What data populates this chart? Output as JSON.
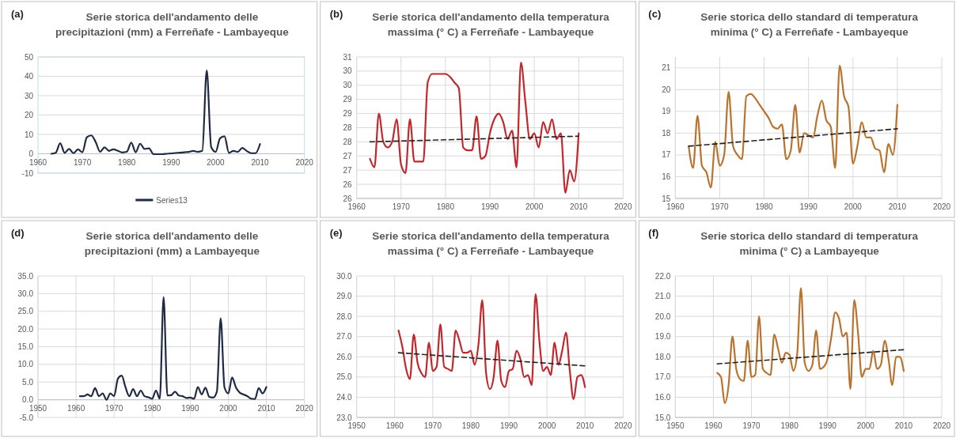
{
  "chart_data": [
    {
      "type": "line",
      "title": "Serie storica dell'andamento delle precipitazioni (mm) a Ferreñafe - Lambayeque",
      "annotations": [
        "(a)"
      ],
      "x": [
        1963,
        1964,
        1965,
        1966,
        1967,
        1968,
        1969,
        1970,
        1971,
        1972,
        1973,
        1974,
        1975,
        1976,
        1977,
        1978,
        1979,
        1980,
        1981,
        1982,
        1983,
        1984,
        1985,
        1986,
        1987,
        1988,
        1989,
        1990,
        1991,
        1992,
        1993,
        1994,
        1995,
        1996,
        1997,
        1998,
        1999,
        2000,
        2001,
        2002,
        2003,
        2004,
        2005,
        2006,
        2007,
        2008,
        2009,
        2010
      ],
      "series": [
        {
          "name": "Series13",
          "color": "#1f2a44",
          "values": [
            0,
            0.5,
            5.5,
            0.5,
            2.5,
            0.3,
            2.3,
            0.8,
            8.5,
            9.5,
            6,
            1,
            3.3,
            1.5,
            2.3,
            1.5,
            0.7,
            1,
            5.8,
            0.8,
            5.2,
            2.5,
            2.8,
            -0.2,
            -0.2,
            -0.2,
            0,
            0.2,
            0.4,
            0.6,
            0.8,
            1,
            1.5,
            1,
            1.5,
            43,
            3.5,
            1,
            8,
            9,
            0.5,
            1.5,
            1,
            3,
            1.5,
            0.3,
            0.3,
            5
          ]
        }
      ],
      "xlim": [
        1960,
        2020
      ],
      "xticks": [
        1960,
        1970,
        1980,
        1990,
        2000,
        2010,
        2020
      ],
      "ylim": [
        -10,
        50
      ],
      "yticks": [
        -10,
        0,
        10,
        20,
        30,
        40,
        50
      ],
      "grid": "y",
      "legend": "bottom"
    },
    {
      "type": "line",
      "title": "Serie storica dell'andamento della temperatura massima (° C) a Ferreñafe - Lambayeque",
      "annotations": [
        "(b)"
      ],
      "x": [
        1963,
        1964,
        1965,
        1966,
        1967,
        1968,
        1969,
        1970,
        1971,
        1972,
        1973,
        1974,
        1975,
        1976,
        1977,
        1978,
        1979,
        1980,
        1981,
        1982,
        1983,
        1984,
        1985,
        1986,
        1987,
        1988,
        1989,
        1990,
        1991,
        1992,
        1993,
        1994,
        1995,
        1996,
        1997,
        1998,
        1999,
        2000,
        2001,
        2002,
        2003,
        2004,
        2005,
        2006,
        2007,
        2008,
        2009,
        2010
      ],
      "series": [
        {
          "color": "#c0282d",
          "values": [
            26.9,
            26.6,
            28.5,
            27.5,
            27.3,
            27.5,
            28.3,
            26.7,
            26.4,
            28.3,
            26.8,
            26.8,
            26.8,
            29.6,
            29.9,
            29.9,
            29.9,
            29.9,
            29.8,
            29.6,
            29.4,
            27.3,
            27.2,
            27.2,
            28.4,
            26.9,
            27,
            27.8,
            28.3,
            28.5,
            28.2,
            27.6,
            27.9,
            26.6,
            30.3,
            28.9,
            27.6,
            27.8,
            27.3,
            28.2,
            27.8,
            28.3,
            27.6,
            27.8,
            25.7,
            26.5,
            26.1,
            27.8
          ]
        },
        {
          "type": "line",
          "line_style": "dashed",
          "color": "#222222",
          "x": [
            1963,
            2010
          ],
          "values": [
            27.5,
            27.7
          ]
        }
      ],
      "xlim": [
        1960,
        2020
      ],
      "xticks": [
        1960,
        1970,
        1980,
        1990,
        2000,
        2010,
        2020
      ],
      "ylim": [
        25.5,
        30.5
      ],
      "yticks": [
        {
          "value": 25.5,
          "label": "26"
        },
        {
          "value": 26,
          "label": "26"
        },
        {
          "value": 26.5,
          "label": "27"
        },
        {
          "value": 27,
          "label": "27"
        },
        {
          "value": 27.5,
          "label": "28"
        },
        {
          "value": 28,
          "label": "28"
        },
        {
          "value": 28.5,
          "label": "29"
        },
        {
          "value": 29,
          "label": "29"
        },
        {
          "value": 29.5,
          "label": "30"
        },
        {
          "value": 30,
          "label": "30"
        },
        {
          "value": 30.5,
          "label": "31"
        }
      ],
      "grid": true
    },
    {
      "type": "line",
      "title": "Serie storica dello standard di temperatura minima (° C) a Ferreñafe - Lambayeque",
      "annotations": [
        "(c)"
      ],
      "x": [
        1963,
        1964,
        1965,
        1966,
        1967,
        1968,
        1969,
        1970,
        1971,
        1972,
        1973,
        1974,
        1975,
        1976,
        1977,
        1978,
        1979,
        1980,
        1981,
        1982,
        1983,
        1984,
        1985,
        1986,
        1987,
        1988,
        1989,
        1990,
        1991,
        1992,
        1993,
        1994,
        1995,
        1996,
        1997,
        1998,
        1999,
        2000,
        2001,
        2002,
        2003,
        2004,
        2005,
        2006,
        2007,
        2008,
        2009,
        2010
      ],
      "series": [
        {
          "color": "#b8732e",
          "values": [
            17.4,
            16.4,
            18.8,
            16.5,
            16.2,
            15.5,
            17.6,
            16.5,
            17,
            19.9,
            17.4,
            17,
            16.8,
            19.7,
            19.8,
            19.6,
            19.3,
            19,
            18.7,
            18.3,
            18.2,
            18.4,
            16.8,
            17.2,
            19.3,
            17.1,
            18,
            17.9,
            17.8,
            18.8,
            19.5,
            18.6,
            18.3,
            16.4,
            21.1,
            19.7,
            19.2,
            16.6,
            17.4,
            18.5,
            17.8,
            17.8,
            17.3,
            17.2,
            16.2,
            17.5,
            17,
            19.3
          ]
        },
        {
          "type": "line",
          "line_style": "dashed",
          "color": "#222222",
          "x": [
            1963,
            2010
          ],
          "values": [
            17.4,
            18.2
          ]
        }
      ],
      "xlim": [
        1960,
        2020
      ],
      "xticks": [
        1960,
        1970,
        1980,
        1990,
        2000,
        2010,
        2020
      ],
      "ylim": [
        15,
        21.5
      ],
      "yticks": [
        15,
        16,
        17,
        18,
        19,
        20,
        21
      ],
      "grid": true
    },
    {
      "type": "line",
      "title": "Serie storica dell'andamento delle precipitazioni (mm) a Lambayeque",
      "annotations": [
        "(d)"
      ],
      "x": [
        1961,
        1962,
        1963,
        1964,
        1965,
        1966,
        1967,
        1968,
        1969,
        1970,
        1971,
        1972,
        1973,
        1974,
        1975,
        1976,
        1977,
        1978,
        1979,
        1980,
        1981,
        1982,
        1983,
        1984,
        1985,
        1986,
        1987,
        1988,
        1989,
        1990,
        1991,
        1992,
        1993,
        1994,
        1995,
        1996,
        1997,
        1998,
        1999,
        2000,
        2001,
        2002,
        2003,
        2004,
        2005,
        2006,
        2007,
        2008,
        2009,
        2010
      ],
      "series": [
        {
          "color": "#1f2a44",
          "values": [
            1,
            1,
            1.5,
            1,
            3.3,
            1,
            1.8,
            0,
            1.8,
            1,
            6,
            6.8,
            3.5,
            1,
            3,
            1,
            2.6,
            1,
            0.7,
            0.3,
            2.6,
            0.3,
            29,
            1.2,
            1.3,
            2.3,
            1.2,
            1,
            0.5,
            0.6,
            0.3,
            3.6,
            1.5,
            3.4,
            0.8,
            0.6,
            2.3,
            23,
            3.5,
            1.8,
            6.3,
            3.5,
            2,
            1.5,
            1,
            0.3,
            0.2,
            3.3,
            1.8,
            3.6
          ]
        }
      ],
      "xlim": [
        1950,
        2020
      ],
      "xticks": [
        1950,
        1960,
        1970,
        1980,
        1990,
        2000,
        2010,
        2020
      ],
      "ylim": [
        -5,
        35
      ],
      "yticks": [
        {
          "value": -5,
          "label": "-5.0"
        },
        {
          "value": 0,
          "label": "0.0"
        },
        {
          "value": 5,
          "label": "5.0"
        },
        {
          "value": 10,
          "label": "10.0"
        },
        {
          "value": 15,
          "label": "15.0"
        },
        {
          "value": 20,
          "label": "20.0"
        },
        {
          "value": 25,
          "label": "25.0"
        },
        {
          "value": 30,
          "label": "30.0"
        },
        {
          "value": 35,
          "label": "35.0"
        }
      ],
      "grid": true
    },
    {
      "type": "line",
      "title": "Serie storica dell'andamento della temperatura massima (° C) a Ferreñafe - Lambayeque",
      "annotations": [
        "(e)"
      ],
      "x": [
        1961,
        1962,
        1963,
        1964,
        1965,
        1966,
        1967,
        1968,
        1969,
        1970,
        1971,
        1972,
        1973,
        1974,
        1975,
        1976,
        1977,
        1978,
        1979,
        1980,
        1981,
        1982,
        1983,
        1984,
        1985,
        1986,
        1987,
        1988,
        1989,
        1990,
        1991,
        1992,
        1993,
        1994,
        1995,
        1996,
        1997,
        1998,
        1999,
        2000,
        2001,
        2002,
        2003,
        2004,
        2005,
        2006,
        2007,
        2008,
        2009,
        2010
      ],
      "series": [
        {
          "color": "#c0282d",
          "values": [
            27.3,
            26.5,
            25.4,
            24.9,
            27.1,
            25.7,
            25.2,
            25,
            26.7,
            25.3,
            25.5,
            27.6,
            25.5,
            25.4,
            25.3,
            27.3,
            26.8,
            26.2,
            26.2,
            26.3,
            25.6,
            26.6,
            28.8,
            25.2,
            24.4,
            25,
            26.8,
            24.8,
            24.5,
            25.3,
            25.4,
            26.3,
            25.9,
            25,
            25.1,
            24.6,
            29.1,
            26.8,
            25.3,
            25.5,
            25.1,
            26.7,
            25.6,
            26.3,
            27.2,
            25.3,
            23.9,
            25,
            25.1,
            24.5
          ]
        },
        {
          "type": "line",
          "line_style": "dashed",
          "color": "#222222",
          "x": [
            1961,
            2010
          ],
          "values": [
            26.2,
            25.55
          ]
        }
      ],
      "xlim": [
        1950,
        2020
      ],
      "xticks": [
        1950,
        1960,
        1970,
        1980,
        1990,
        2000,
        2010,
        2020
      ],
      "ylim": [
        23,
        30
      ],
      "yticks": [
        {
          "value": 23,
          "label": "23.0"
        },
        {
          "value": 24,
          "label": "24.0"
        },
        {
          "value": 25,
          "label": "25.0"
        },
        {
          "value": 26,
          "label": "26.0"
        },
        {
          "value": 27,
          "label": "27.0"
        },
        {
          "value": 28,
          "label": "28.0"
        },
        {
          "value": 29,
          "label": "29.0"
        },
        {
          "value": 30,
          "label": "30.0"
        }
      ],
      "grid": true
    },
    {
      "type": "line",
      "title": "Serie storica dello standard di temperatura minima (° C) a  Lambayeque",
      "annotations": [
        "(f)"
      ],
      "x": [
        1961,
        1962,
        1963,
        1964,
        1965,
        1966,
        1967,
        1968,
        1969,
        1970,
        1971,
        1972,
        1973,
        1974,
        1975,
        1976,
        1977,
        1978,
        1979,
        1980,
        1981,
        1982,
        1983,
        1984,
        1985,
        1986,
        1987,
        1988,
        1989,
        1990,
        1991,
        1992,
        1993,
        1994,
        1995,
        1996,
        1997,
        1998,
        1999,
        2000,
        2001,
        2002,
        2003,
        2004,
        2005,
        2006,
        2007,
        2008,
        2009,
        2010
      ],
      "series": [
        {
          "color": "#b8732e",
          "values": [
            17.2,
            17,
            15.7,
            16.6,
            19,
            17.4,
            16.9,
            16.8,
            18.8,
            17,
            17.1,
            20,
            17.4,
            17.2,
            17.1,
            19.1,
            18.4,
            17.7,
            18.2,
            18.1,
            17.3,
            18.1,
            21.4,
            17.7,
            17.3,
            17.6,
            19.3,
            17.4,
            17.5,
            17.9,
            19,
            20.2,
            19.9,
            19,
            19.2,
            16.4,
            20.8,
            19.2,
            17,
            17.4,
            17.4,
            18.3,
            17.4,
            17.6,
            18.8,
            17.9,
            16.6,
            18,
            18,
            17.3
          ]
        },
        {
          "type": "line",
          "line_style": "dashed",
          "color": "#222222",
          "x": [
            1961,
            2010
          ],
          "values": [
            17.65,
            18.35
          ]
        }
      ],
      "xlim": [
        1950,
        2020
      ],
      "xticks": [
        1950,
        1960,
        1970,
        1980,
        1990,
        2000,
        2010,
        2020
      ],
      "ylim": [
        15,
        22
      ],
      "yticks": [
        {
          "value": 15,
          "label": "15.0"
        },
        {
          "value": 16,
          "label": "16.0"
        },
        {
          "value": 17,
          "label": "17.0"
        },
        {
          "value": 18,
          "label": "18.0"
        },
        {
          "value": 19,
          "label": "19.0"
        },
        {
          "value": 20,
          "label": "20.0"
        },
        {
          "value": 21,
          "label": "21.0"
        },
        {
          "value": 22,
          "label": "22.0"
        }
      ],
      "grid": true
    }
  ]
}
